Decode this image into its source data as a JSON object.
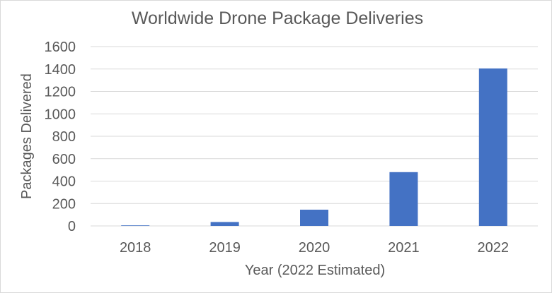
{
  "chart_data": {
    "type": "bar",
    "title": "Worldwide Drone Package Deliveries",
    "xlabel": "Year (2022 Estimated)",
    "ylabel": "Packages Delivered",
    "categories": [
      "2018",
      "2019",
      "2020",
      "2021",
      "2022"
    ],
    "values": [
      5,
      35,
      145,
      480,
      1405
    ],
    "ylim": [
      0,
      1600
    ],
    "yticks": [
      0,
      200,
      400,
      600,
      800,
      1000,
      1200,
      1400,
      1600
    ],
    "grid": true,
    "bar_color": "#4472c4",
    "grid_color": "#d9d9d9"
  }
}
